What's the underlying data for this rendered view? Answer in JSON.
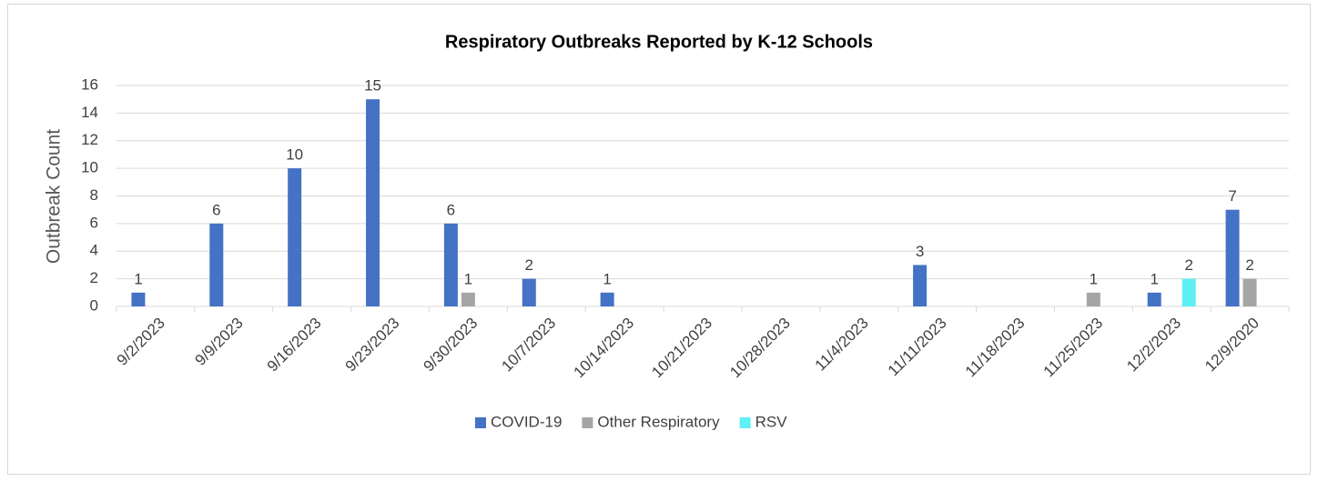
{
  "chart_data": {
    "type": "bar",
    "title": "Respiratory Outbreaks Reported by K-12 Schools",
    "y_label": "Outbreak Count",
    "categories": [
      "9/2/2023",
      "9/9/2023",
      "9/16/2023",
      "9/23/2023",
      "9/30/2023",
      "10/7/2023",
      "10/14/2023",
      "10/21/2023",
      "10/28/2023",
      "11/4/2023",
      "11/11/2023",
      "11/18/2023",
      "11/25/2023",
      "12/2/2023",
      "12/9/2020"
    ],
    "series": [
      {
        "name": "COVID-19",
        "color": "#4472c4",
        "values": [
          1,
          6,
          10,
          15,
          6,
          2,
          1,
          null,
          null,
          null,
          3,
          null,
          null,
          1,
          7
        ]
      },
      {
        "name": "Other Respiratory",
        "color": "#a5a5a5",
        "values": [
          null,
          null,
          null,
          null,
          1,
          null,
          null,
          null,
          null,
          null,
          null,
          null,
          1,
          null,
          2
        ]
      },
      {
        "name": "RSV",
        "color": "#5ff0f5",
        "values": [
          null,
          null,
          null,
          null,
          null,
          null,
          null,
          null,
          null,
          null,
          null,
          null,
          null,
          2,
          null
        ]
      }
    ],
    "ylim": [
      0,
      16
    ],
    "yticks": [
      0,
      2,
      4,
      6,
      8,
      10,
      12,
      14,
      16
    ],
    "grid": true,
    "legend": "bottom"
  }
}
